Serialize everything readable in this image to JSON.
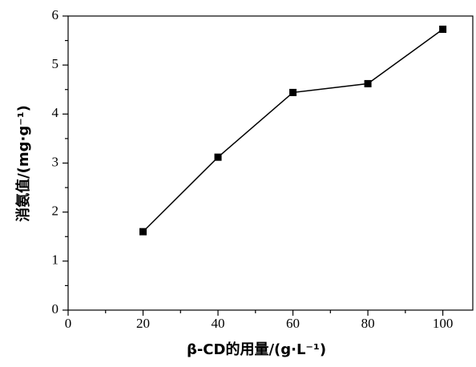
{
  "chart_data": {
    "type": "line",
    "x_label": "β-CD的用量/(g·L⁻¹)",
    "y_label": "消氨值/(mg·g⁻¹)",
    "x": [
      20,
      40,
      60,
      80,
      100
    ],
    "series": [
      {
        "color": "#000000",
        "values": [
          1.6,
          3.12,
          4.44,
          4.62,
          5.73
        ]
      }
    ],
    "xlim": [
      0,
      108
    ],
    "xticks": [
      0,
      20,
      40,
      60,
      80,
      100
    ],
    "xminorticks": [
      10,
      30,
      50,
      70,
      90
    ],
    "ylim": [
      0,
      6
    ],
    "yticks": [
      0,
      1,
      2,
      3,
      4,
      5,
      6
    ],
    "yminorticks": [
      0.5,
      1.5,
      2.5,
      3.5,
      4.5,
      5.5
    ],
    "grid": false
  }
}
